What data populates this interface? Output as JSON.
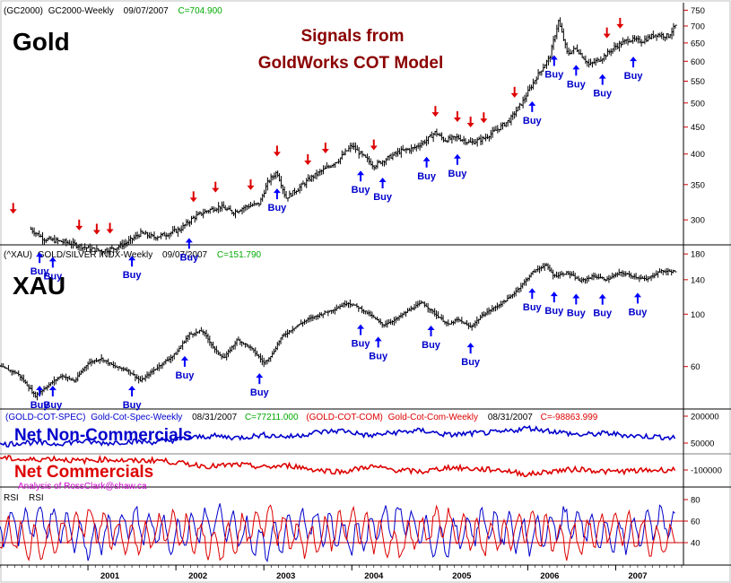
{
  "colors": {
    "price_bars": "#000000",
    "buy_arrow": "#0000ff",
    "buy_text": "#0000cc",
    "sell_arrow": "#dd0000",
    "title": "#8b0000",
    "spec_line": "#0000cc",
    "com_line": "#dd0000",
    "value_green": "#00aa00",
    "reference_line": "#cc0000",
    "attribution": "#cc00cc"
  },
  "gold_panel": {
    "header_symbol": "(GC2000)",
    "header_name": "GC2000-Weekly",
    "header_date": "09/07/2007",
    "header_close": "C=704.900",
    "label": "Gold",
    "title_line1": "Signals from",
    "title_line2": "GoldWorks COT Model",
    "y_ticks": [
      "750",
      "700",
      "650",
      "600",
      "550",
      "500",
      "450",
      "400",
      "350",
      "300"
    ]
  },
  "xau_panel": {
    "header_symbol": "(^XAU)",
    "header_name": "GOLD/SILVER INDX-Weekly",
    "header_date": "09/07/2007",
    "header_close": "C=151.790",
    "label": "XAU",
    "y_ticks": [
      "180",
      "140",
      "100",
      "60"
    ]
  },
  "cot_panel": {
    "spec_header_symbol": "(GOLD-COT-SPEC)",
    "spec_header_name": "Gold-Cot-Spec-Weekly",
    "spec_header_date": "08/31/2007",
    "spec_header_value": "C=77211.000",
    "com_header_symbol": "(GOLD-COT-COM)",
    "com_header_name": "Gold-Cot-Com-Weekly",
    "com_header_date": "08/31/2007",
    "com_header_value": "C=-98863.999",
    "spec_label": "Net Non-Commercials",
    "com_label": "Net Commercials",
    "attribution": "Analysis of RossClark@shaw.ca",
    "y_ticks": [
      "200000",
      "50000",
      "-100000"
    ]
  },
  "rsi_panel": {
    "label_1": "RSI",
    "label_2": "RSI",
    "y_ticks": [
      "80",
      "60",
      "40"
    ]
  },
  "signal_word": "Buy",
  "chart_data": [
    {
      "type": "line",
      "title": "Gold",
      "subtitle": "Signals from GoldWorks COT Model",
      "xlabel": "",
      "ylabel": "",
      "y_scale": "log",
      "ylim": [
        270,
        760
      ],
      "x_ticks": [
        "2001",
        "2002",
        "2003",
        "2004",
        "2005",
        "2006",
        "2007"
      ],
      "series": [
        {
          "x": [
            2000.35,
            2000.5,
            2000.75,
            2001.0,
            2001.15,
            2001.3,
            2001.45,
            2001.6,
            2001.75,
            2001.9,
            2002.05,
            2002.2,
            2002.35,
            2002.5,
            2002.65,
            2002.8,
            2002.95,
            2003.05,
            2003.15,
            2003.25,
            2003.4,
            2003.55,
            2003.7,
            2003.85,
            2004.0,
            2004.1,
            2004.25,
            2004.4,
            2004.55,
            2004.7,
            2004.85,
            2004.95,
            2005.05,
            2005.2,
            2005.35,
            2005.5,
            2005.65,
            2005.8,
            2005.95,
            2006.1,
            2006.25,
            2006.35,
            2006.45,
            2006.55,
            2006.7,
            2006.85,
            2007.0,
            2007.15,
            2007.3,
            2007.45,
            2007.6,
            2007.69
          ],
          "values": [
            288,
            276,
            272,
            265,
            262,
            265,
            272,
            283,
            278,
            282,
            288,
            303,
            312,
            318,
            310,
            318,
            322,
            355,
            370,
            330,
            345,
            362,
            375,
            390,
            415,
            400,
            380,
            392,
            405,
            410,
            425,
            440,
            425,
            430,
            420,
            428,
            445,
            465,
            505,
            560,
            610,
            715,
            620,
            635,
            590,
            610,
            640,
            660,
            655,
            675,
            670,
            704.9
          ]
        }
      ],
      "sell_signals_x": [
        2000.15,
        2000.9,
        2001.1,
        2001.25,
        2002.2,
        2002.45,
        2002.85,
        2003.15,
        2003.5,
        2003.7,
        2004.25,
        2004.95,
        2005.2,
        2005.35,
        2005.5,
        2005.85,
        2006.9,
        2007.05
      ],
      "buy_signals_x": [
        2000.45,
        2000.6,
        2001.5,
        2002.15,
        2003.15,
        2004.1,
        2004.35,
        2004.85,
        2005.2,
        2006.05,
        2006.3,
        2006.55,
        2006.85,
        2007.2
      ]
    },
    {
      "type": "line",
      "title": "XAU",
      "xlabel": "",
      "ylabel": "",
      "y_scale": "log",
      "ylim": [
        40,
        185
      ],
      "x_ticks": [
        "2001",
        "2002",
        "2003",
        "2004",
        "2005",
        "2006",
        "2007"
      ],
      "series": [
        {
          "x": [
            2000.0,
            2000.2,
            2000.4,
            2000.55,
            2000.7,
            2000.85,
            2001.0,
            2001.15,
            2001.3,
            2001.45,
            2001.6,
            2001.8,
            2002.0,
            2002.15,
            2002.3,
            2002.45,
            2002.55,
            2002.7,
            2002.85,
            2003.0,
            2003.1,
            2003.2,
            2003.35,
            2003.5,
            2003.65,
            2003.8,
            2003.95,
            2004.05,
            2004.2,
            2004.35,
            2004.5,
            2004.65,
            2004.8,
            2004.95,
            2005.1,
            2005.2,
            2005.35,
            2005.5,
            2005.65,
            2005.8,
            2005.95,
            2006.05,
            2006.2,
            2006.3,
            2006.45,
            2006.6,
            2006.75,
            2006.9,
            2007.05,
            2007.2,
            2007.35,
            2007.5,
            2007.69
          ],
          "values": [
            60,
            56,
            45,
            50,
            55,
            52,
            62,
            65,
            60,
            58,
            52,
            60,
            68,
            82,
            85,
            70,
            65,
            78,
            72,
            62,
            68,
            80,
            88,
            95,
            100,
            105,
            112,
            108,
            100,
            90,
            95,
            104,
            112,
            100,
            90,
            95,
            88,
            100,
            108,
            118,
            135,
            150,
            162,
            145,
            150,
            138,
            145,
            140,
            150,
            145,
            140,
            152,
            151.79
          ]
        }
      ],
      "buy_signals_x": [
        2000.45,
        2000.6,
        2001.5,
        2002.1,
        2002.95,
        2004.1,
        2004.3,
        2004.9,
        2005.35,
        2006.05,
        2006.3,
        2006.55,
        2006.85,
        2007.25
      ]
    },
    {
      "type": "line",
      "title": "",
      "xlabel": "",
      "ylabel": "",
      "ylim": [
        -190000,
        230000
      ],
      "x_ticks": [
        "2001",
        "2002",
        "2003",
        "2004",
        "2005",
        "2006",
        "2007"
      ],
      "series": [
        {
          "name": "(GOLD-COT-SPEC) Gold-Cot-Spec-Weekly",
          "x": [
            2000.0,
            2000.3,
            2000.6,
            2000.9,
            2001.2,
            2001.5,
            2001.8,
            2002.1,
            2002.4,
            2002.7,
            2003.0,
            2003.3,
            2003.6,
            2003.9,
            2004.2,
            2004.5,
            2004.8,
            2005.1,
            2005.4,
            2005.7,
            2006.0,
            2006.3,
            2006.6,
            2006.9,
            2007.2,
            2007.5,
            2007.69
          ],
          "values": [
            40000,
            55000,
            45000,
            60000,
            50000,
            60000,
            55000,
            75000,
            90000,
            80000,
            95000,
            85000,
            110000,
            120000,
            90000,
            110000,
            120000,
            95000,
            105000,
            110000,
            135000,
            115000,
            95000,
            105000,
            90000,
            85000,
            77211
          ]
        },
        {
          "name": "(GOLD-COT-COM) Gold-Cot-Com-Weekly",
          "x": [
            2000.0,
            2000.3,
            2000.6,
            2000.9,
            2001.2,
            2001.5,
            2001.8,
            2002.1,
            2002.4,
            2002.7,
            2003.0,
            2003.3,
            2003.6,
            2003.9,
            2004.2,
            2004.5,
            2004.8,
            2005.1,
            2005.4,
            2005.7,
            2006.0,
            2006.3,
            2006.6,
            2006.9,
            2007.2,
            2007.5,
            2007.69
          ],
          "values": [
            -30000,
            -45000,
            -35000,
            -50000,
            -40000,
            -50000,
            -45000,
            -65000,
            -80000,
            -70000,
            -85000,
            -75000,
            -100000,
            -110000,
            -80000,
            -100000,
            -110000,
            -85000,
            -95000,
            -100000,
            -125000,
            -105000,
            -95000,
            -110000,
            -105000,
            -100000,
            -98864
          ]
        }
      ]
    },
    {
      "type": "line",
      "title": "",
      "xlabel": "",
      "ylabel": "",
      "ylim": [
        20,
        90
      ],
      "reference_lines": [
        60,
        40
      ],
      "x_ticks": [
        "2001",
        "2002",
        "2003",
        "2004",
        "2005",
        "2006",
        "2007"
      ],
      "series": [
        {
          "x": [
            2000.0,
            2000.5,
            2001.0,
            2001.5,
            2002.0,
            2002.5,
            2003.0,
            2003.5,
            2004.0,
            2004.5,
            2005.0,
            2005.5,
            2006.0,
            2006.5,
            2007.0,
            2007.5,
            2007.69
          ],
          "values": [
            50,
            62,
            40,
            58,
            45,
            62,
            38,
            60,
            42,
            63,
            40,
            58,
            45,
            60,
            42,
            60,
            55
          ]
        },
        {
          "x": [
            2000.0,
            2000.5,
            2001.0,
            2001.5,
            2002.0,
            2002.5,
            2003.0,
            2003.5,
            2004.0,
            2004.5,
            2005.0,
            2005.5,
            2006.0,
            2006.5,
            2007.0,
            2007.5,
            2007.69
          ],
          "values": [
            50,
            38,
            60,
            42,
            55,
            38,
            62,
            40,
            58,
            37,
            60,
            42,
            55,
            40,
            58,
            40,
            45
          ]
        }
      ]
    }
  ]
}
